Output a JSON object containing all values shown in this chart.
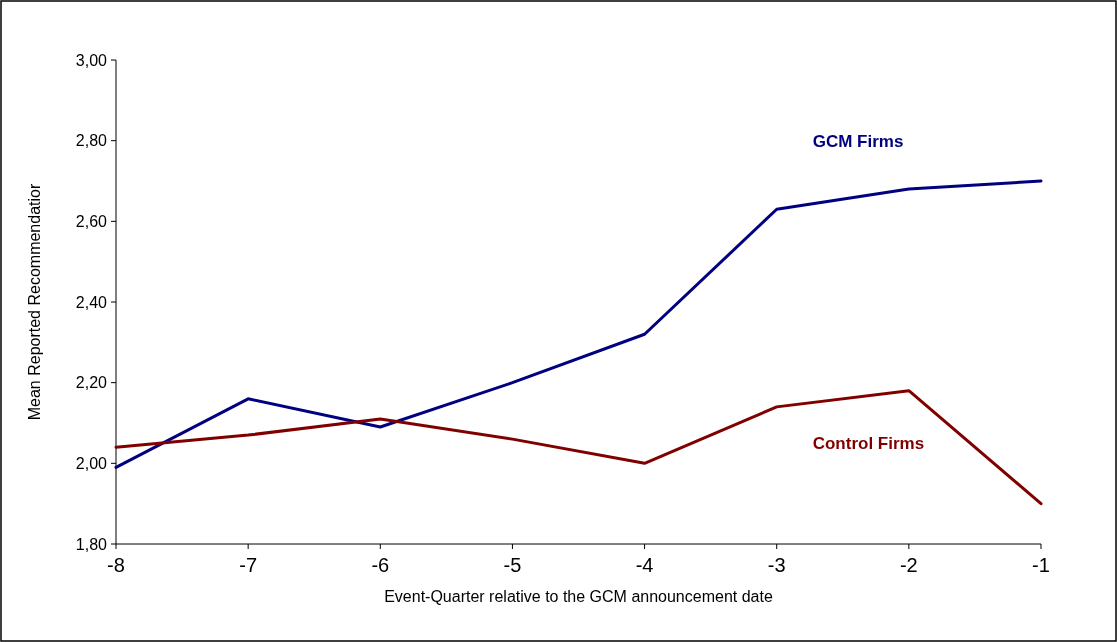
{
  "chart_data": {
    "type": "line",
    "xlabel": "Event-Quarter relative to the GCM announcement date",
    "ylabel": "Mean Reported Recommendatior",
    "x": [
      -8,
      -7,
      -6,
      -5,
      -4,
      -3,
      -2,
      -1
    ],
    "xlim": [
      -8,
      -1
    ],
    "xticks": [
      -8,
      -7,
      -6,
      -5,
      -4,
      -3,
      -2,
      -1
    ],
    "ylim": [
      1.8,
      3.0
    ],
    "yticks": [
      {
        "value": 1.8,
        "label": "1,80"
      },
      {
        "value": 2.0,
        "label": "2,00"
      },
      {
        "value": 2.2,
        "label": "2,20"
      },
      {
        "value": 2.4,
        "label": "2,40"
      },
      {
        "value": 2.6,
        "label": "2,60"
      },
      {
        "value": 2.8,
        "label": "2,80"
      },
      {
        "value": 3.0,
        "label": "3,00"
      }
    ],
    "grid": false,
    "marker": "none",
    "line_style": "solid",
    "series": [
      {
        "name": "GCM Firms",
        "color": "#000080",
        "values": [
          1.99,
          2.16,
          2.09,
          2.2,
          2.32,
          2.63,
          2.68,
          2.7
        ]
      },
      {
        "name": "Control Firms",
        "color": "#800000",
        "values": [
          2.04,
          2.07,
          2.11,
          2.06,
          2.0,
          2.14,
          2.18,
          1.9
        ]
      }
    ]
  }
}
